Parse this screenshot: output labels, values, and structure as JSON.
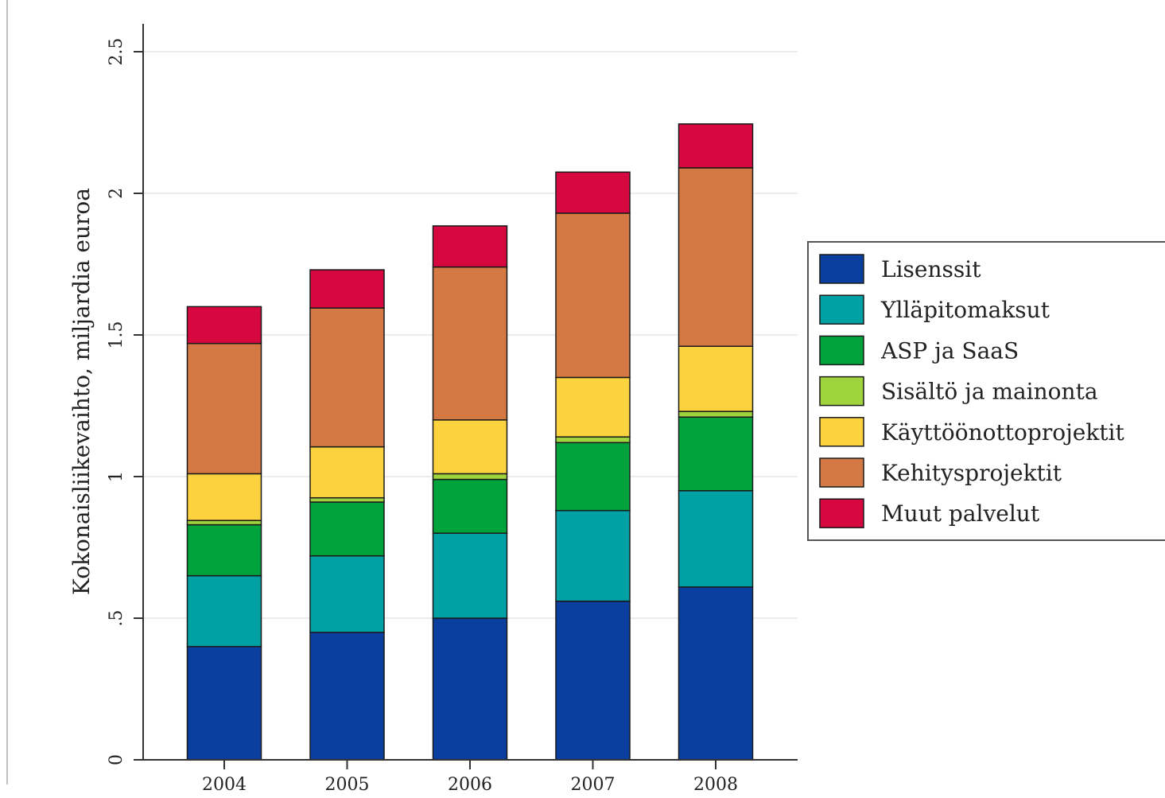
{
  "chart_data": {
    "type": "bar",
    "stacked": true,
    "categories": [
      "2004",
      "2005",
      "2006",
      "2007",
      "2008"
    ],
    "ylabel": "Kokonaisliikevaihto, miljardia euroa",
    "xlabel": "",
    "ylim": [
      0,
      2.6
    ],
    "yticks": [
      0,
      0.5,
      1,
      1.5,
      2,
      2.5
    ],
    "ytick_labels": [
      "0",
      ".5",
      "1",
      "1.5",
      "2",
      "2.5"
    ],
    "grid": "horizontal",
    "legend_position": "right",
    "series": [
      {
        "name": "Lisenssit",
        "color": "#0a3fa0",
        "values": [
          0.4,
          0.45,
          0.5,
          0.56,
          0.61
        ]
      },
      {
        "name": "Ylläpitomaksut",
        "color": "#00a1a5",
        "values": [
          0.25,
          0.27,
          0.3,
          0.32,
          0.34
        ]
      },
      {
        "name": "ASP ja SaaS",
        "color": "#00a33b",
        "values": [
          0.18,
          0.19,
          0.19,
          0.24,
          0.26
        ]
      },
      {
        "name": "Sisältö ja mainonta",
        "color": "#9fd43f",
        "values": [
          0.015,
          0.015,
          0.02,
          0.02,
          0.02
        ]
      },
      {
        "name": "Käyttöönottoprojektit",
        "color": "#fcd23e",
        "values": [
          0.165,
          0.18,
          0.19,
          0.21,
          0.23
        ]
      },
      {
        "name": "Kehitysprojektit",
        "color": "#d47943",
        "values": [
          0.46,
          0.49,
          0.54,
          0.58,
          0.63
        ]
      },
      {
        "name": "Muut palvelut",
        "color": "#d6083f",
        "values": [
          0.13,
          0.135,
          0.145,
          0.145,
          0.155
        ]
      }
    ]
  }
}
